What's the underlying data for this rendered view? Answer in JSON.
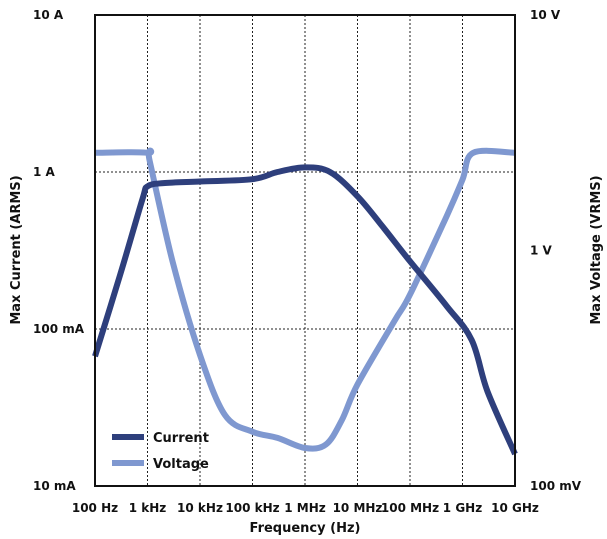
{
  "chart_data": {
    "type": "line",
    "title": "",
    "xlabel": "Frequency (Hz)",
    "ylabel_left": "Max Current (ARMS)",
    "ylabel_right": "Max Voltage (VRMS)",
    "x_scale": "log",
    "xlim": [
      100,
      10000000000
    ],
    "x_ticks": [
      {
        "value": 100,
        "label": "100 Hz"
      },
      {
        "value": 1000,
        "label": "1 kHz"
      },
      {
        "value": 10000,
        "label": "10 kHz"
      },
      {
        "value": 100000,
        "label": "100 kHz"
      },
      {
        "value": 1000000,
        "label": "1 MHz"
      },
      {
        "value": 10000000,
        "label": "10 MHz"
      },
      {
        "value": 100000000,
        "label": "100 MHz"
      },
      {
        "value": 1000000000,
        "label": "1 GHz"
      },
      {
        "value": 10000000000,
        "label": "10 GHz"
      }
    ],
    "y_left_scale": "log",
    "y_left_lim": [
      0.01,
      10
    ],
    "y_left_ticks": [
      {
        "value": 10,
        "label": "10 A"
      },
      {
        "value": 1,
        "label": "1 A"
      },
      {
        "value": 0.1,
        "label": "100 mA"
      },
      {
        "value": 0.01,
        "label": "10 mA"
      }
    ],
    "y_right_scale": "log",
    "y_right_lim": [
      0.1,
      10
    ],
    "y_right_ticks": [
      {
        "value": 10,
        "label": "10 V"
      },
      {
        "value": 1,
        "label": "1 V"
      },
      {
        "value": 0.1,
        "label": "100 mV"
      }
    ],
    "grid": true,
    "legend_position": "bottom-left",
    "series": [
      {
        "name": "Current",
        "axis": "left",
        "color": "#2e3f7c",
        "points": [
          [
            100,
            0.067
          ],
          [
            300,
            0.22
          ],
          [
            800,
            0.67
          ],
          [
            1000,
            0.81
          ],
          [
            2000,
            0.85
          ],
          [
            10000,
            0.87
          ],
          [
            100000,
            0.9
          ],
          [
            300000,
            1.0
          ],
          [
            1000000,
            1.07
          ],
          [
            3000000,
            1.0
          ],
          [
            10000000,
            0.7
          ],
          [
            30000000,
            0.45
          ],
          [
            100000000,
            0.27
          ],
          [
            500000000,
            0.14
          ],
          [
            1500000000,
            0.085
          ],
          [
            3000000000,
            0.04
          ],
          [
            10000000000,
            0.016
          ]
        ]
      },
      {
        "name": "Voltage",
        "axis": "right",
        "color": "#7f98d0",
        "points": [
          [
            100,
            2.6
          ],
          [
            1000,
            2.6
          ],
          [
            1100,
            2.4
          ],
          [
            3000,
            0.9
          ],
          [
            10000,
            0.36
          ],
          [
            30000,
            0.2
          ],
          [
            100000,
            0.17
          ],
          [
            300000,
            0.16
          ],
          [
            1000000,
            0.145
          ],
          [
            2500000,
            0.15
          ],
          [
            5000000,
            0.19
          ],
          [
            10000000,
            0.27
          ],
          [
            50000000,
            0.5
          ],
          [
            100000000,
            0.65
          ],
          [
            500000000,
            1.4
          ],
          [
            1000000000,
            2.0
          ],
          [
            1600000000,
            2.6
          ],
          [
            10000000000,
            2.6
          ]
        ]
      }
    ]
  }
}
